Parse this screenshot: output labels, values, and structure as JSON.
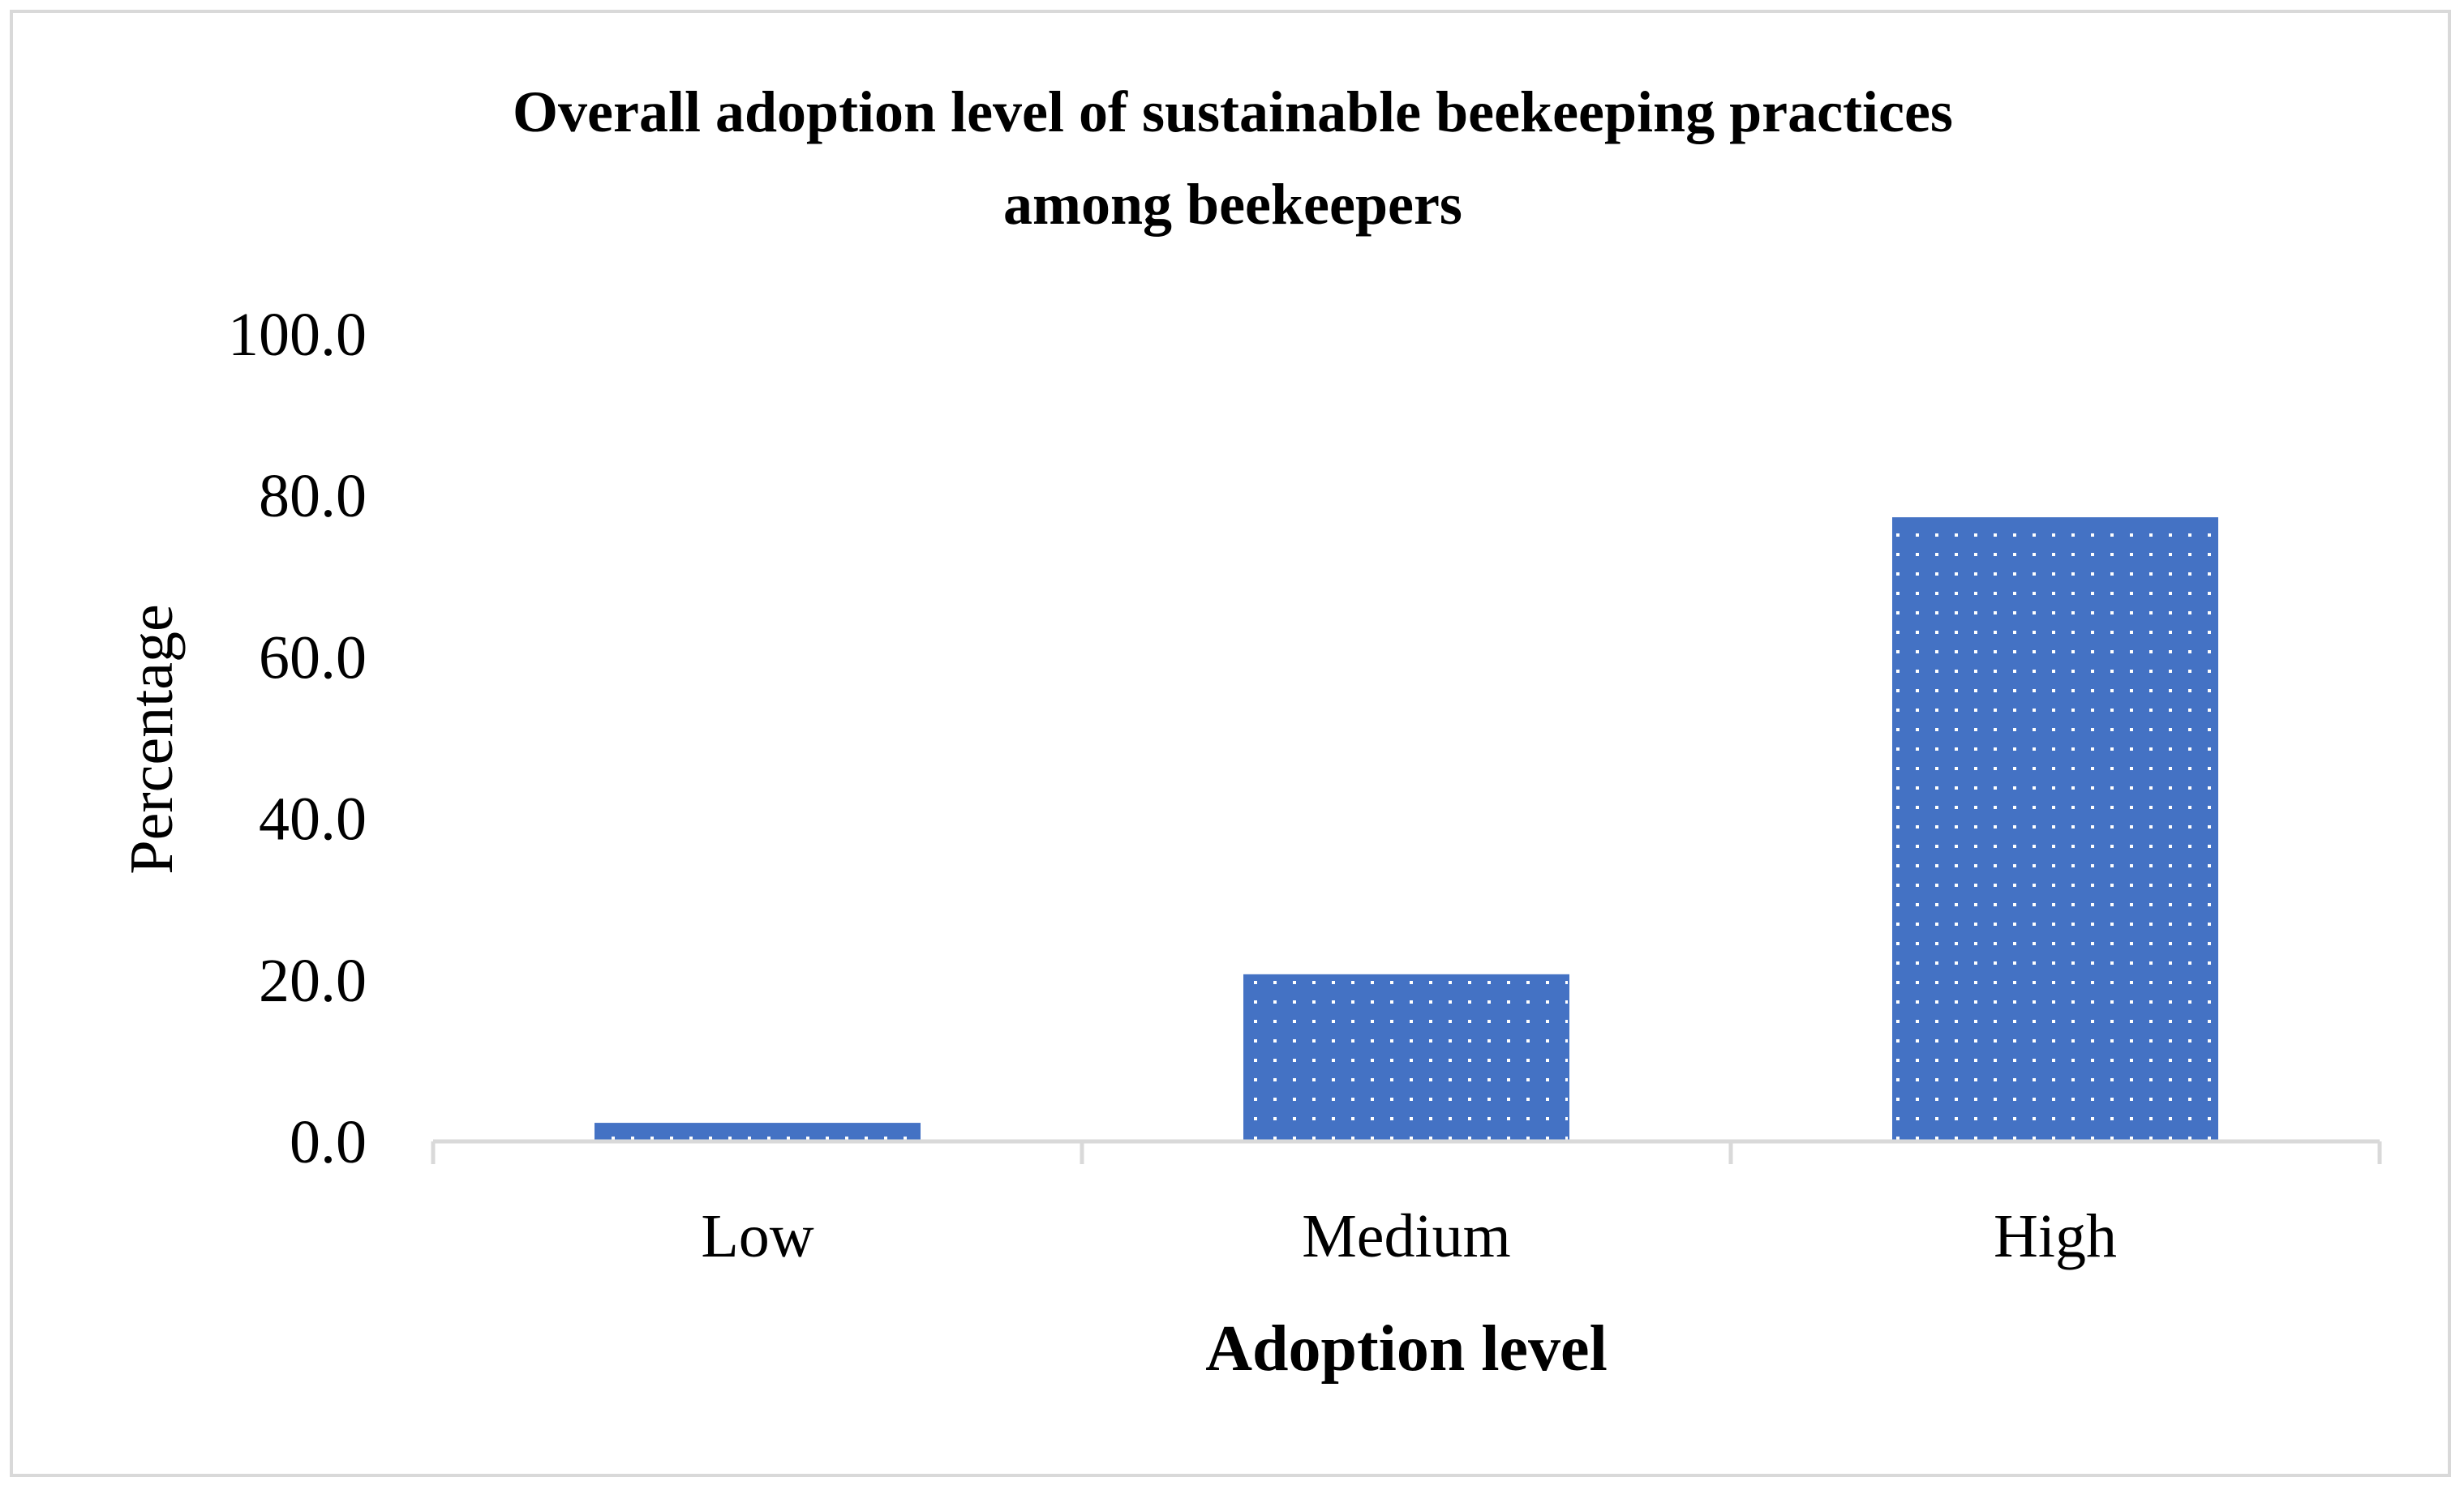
{
  "chart_data": {
    "type": "bar",
    "title_lines": [
      "Overall adoption level of sustainable beekeeping practices",
      "among beekeepers"
    ],
    "categories": [
      "Low",
      "Medium",
      "High"
    ],
    "values": [
      2.2,
      20.6,
      77.2
    ],
    "xlabel": "Adoption level",
    "ylabel": "Percentage",
    "ylim": [
      0,
      100
    ],
    "yticks": [
      "0.0",
      "20.0",
      "40.0",
      "60.0",
      "80.0",
      "100.0"
    ],
    "grid": false,
    "legend": "none"
  },
  "colors": {
    "bar_fill": "#4472c4",
    "bar_pattern_dot": "#ffffff",
    "axis_line": "#d9d9d9",
    "frame_border": "#d9d9d9",
    "text": "#000000"
  }
}
